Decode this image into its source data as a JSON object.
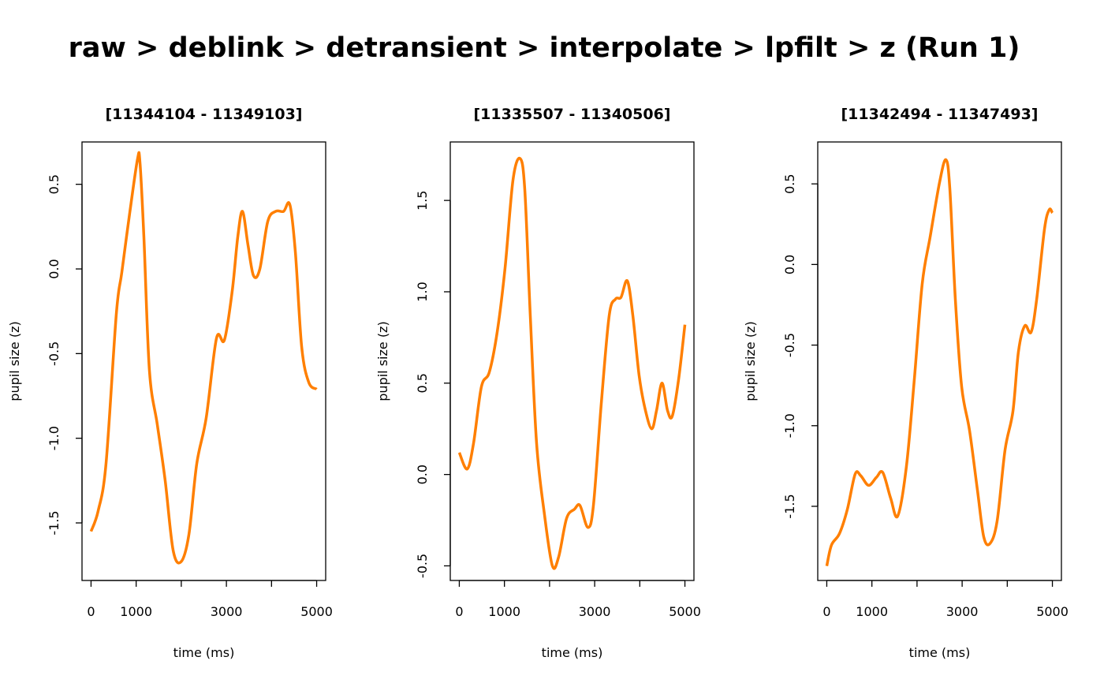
{
  "title": "raw > deblink > detransient > interpolate > lpfilt > z (Run 1)",
  "chart_data": [
    {
      "type": "line",
      "title": "[11344104 - 11349103]",
      "xlabel": "time (ms)",
      "ylabel": "pupil size (z)",
      "line_color": "#FF7F00",
      "x_ticks": [
        0,
        1000,
        2000,
        3000,
        4000,
        5000
      ],
      "x_tick_labels": [
        "0",
        "1000",
        "",
        "3000",
        "",
        "5000"
      ],
      "y_ticks": [
        -1.5,
        -1.0,
        -0.5,
        0.0,
        0.5
      ],
      "y_tick_labels": [
        "-1.5",
        "-1.0",
        "-0.5",
        "0.0",
        "0.5"
      ],
      "xlim": [
        -200,
        5200
      ],
      "ylim": [
        -1.84,
        0.75
      ],
      "grid": false,
      "x": [
        0,
        157,
        332,
        559,
        682,
        857,
        1031,
        1084,
        1171,
        1294,
        1469,
        1643,
        1818,
        1993,
        2168,
        2343,
        2552,
        2780,
        2955,
        3129,
        3252,
        3357,
        3479,
        3601,
        3741,
        3916,
        4091,
        4266,
        4406,
        4528,
        4668,
        4825,
        5000
      ],
      "y": [
        -1.55,
        -1.43,
        -1.15,
        -0.27,
        -0.02,
        0.33,
        0.65,
        0.63,
        0.19,
        -0.6,
        -0.92,
        -1.25,
        -1.66,
        -1.73,
        -1.57,
        -1.15,
        -0.88,
        -0.41,
        -0.42,
        -0.13,
        0.19,
        0.34,
        0.14,
        -0.04,
        0.0,
        0.28,
        0.34,
        0.34,
        0.38,
        0.1,
        -0.46,
        -0.67,
        -0.71
      ]
    },
    {
      "type": "line",
      "title": "[11335507 - 11340506]",
      "xlabel": "time (ms)",
      "ylabel": "pupil size (z)",
      "line_color": "#FF7F00",
      "x_ticks": [
        0,
        1000,
        2000,
        3000,
        4000,
        5000
      ],
      "x_tick_labels": [
        "0",
        "1000",
        "",
        "3000",
        "",
        "5000"
      ],
      "y_ticks": [
        -0.5,
        0.0,
        0.5,
        1.0,
        1.5
      ],
      "y_tick_labels": [
        "-0.5",
        "0.0",
        "0.5",
        "1.0",
        "1.5"
      ],
      "xlim": [
        -200,
        5200
      ],
      "ylim": [
        -0.58,
        1.82
      ],
      "grid": false,
      "x": [
        0,
        175,
        315,
        490,
        665,
        840,
        1014,
        1189,
        1346,
        1451,
        1573,
        1713,
        1888,
        2063,
        2203,
        2378,
        2552,
        2675,
        2850,
        2972,
        3147,
        3322,
        3462,
        3584,
        3724,
        3846,
        3986,
        4126,
        4266,
        4371,
        4493,
        4615,
        4720,
        4860,
        5000
      ],
      "y": [
        0.12,
        0.03,
        0.17,
        0.48,
        0.56,
        0.78,
        1.13,
        1.61,
        1.73,
        1.56,
        0.87,
        0.17,
        -0.22,
        -0.5,
        -0.45,
        -0.24,
        -0.19,
        -0.17,
        -0.29,
        -0.17,
        0.39,
        0.87,
        0.96,
        0.97,
        1.06,
        0.87,
        0.54,
        0.35,
        0.25,
        0.35,
        0.5,
        0.35,
        0.32,
        0.52,
        0.82
      ]
    },
    {
      "type": "line",
      "title": "[11342494 - 11347493]",
      "xlabel": "time (ms)",
      "ylabel": "pupil size (z)",
      "line_color": "#FF7F00",
      "x_ticks": [
        0,
        1000,
        2000,
        3000,
        4000,
        5000
      ],
      "x_tick_labels": [
        "0",
        "1000",
        "",
        "3000",
        "",
        "5000"
      ],
      "y_ticks": [
        -1.5,
        -1.0,
        -0.5,
        0.0,
        0.5
      ],
      "y_tick_labels": [
        "-1.5",
        "-1.0",
        "-0.5",
        "0.0",
        "0.5"
      ],
      "xlim": [
        -200,
        5200
      ],
      "ylim": [
        -1.96,
        0.76
      ],
      "grid": false,
      "x": [
        0,
        105,
        280,
        455,
        629,
        752,
        927,
        1101,
        1241,
        1416,
        1573,
        1766,
        1941,
        2115,
        2290,
        2500,
        2640,
        2727,
        2850,
        2990,
        3164,
        3339,
        3479,
        3619,
        3776,
        3951,
        4126,
        4248,
        4388,
        4528,
        4650,
        4825,
        4930,
        5000
      ],
      "y": [
        -1.87,
        -1.74,
        -1.67,
        -1.52,
        -1.3,
        -1.31,
        -1.37,
        -1.32,
        -1.29,
        -1.45,
        -1.56,
        -1.25,
        -0.71,
        -0.12,
        0.17,
        0.51,
        0.65,
        0.47,
        -0.22,
        -0.76,
        -1.03,
        -1.4,
        -1.69,
        -1.73,
        -1.59,
        -1.15,
        -0.91,
        -0.54,
        -0.38,
        -0.42,
        -0.22,
        0.22,
        0.34,
        0.32
      ]
    }
  ]
}
